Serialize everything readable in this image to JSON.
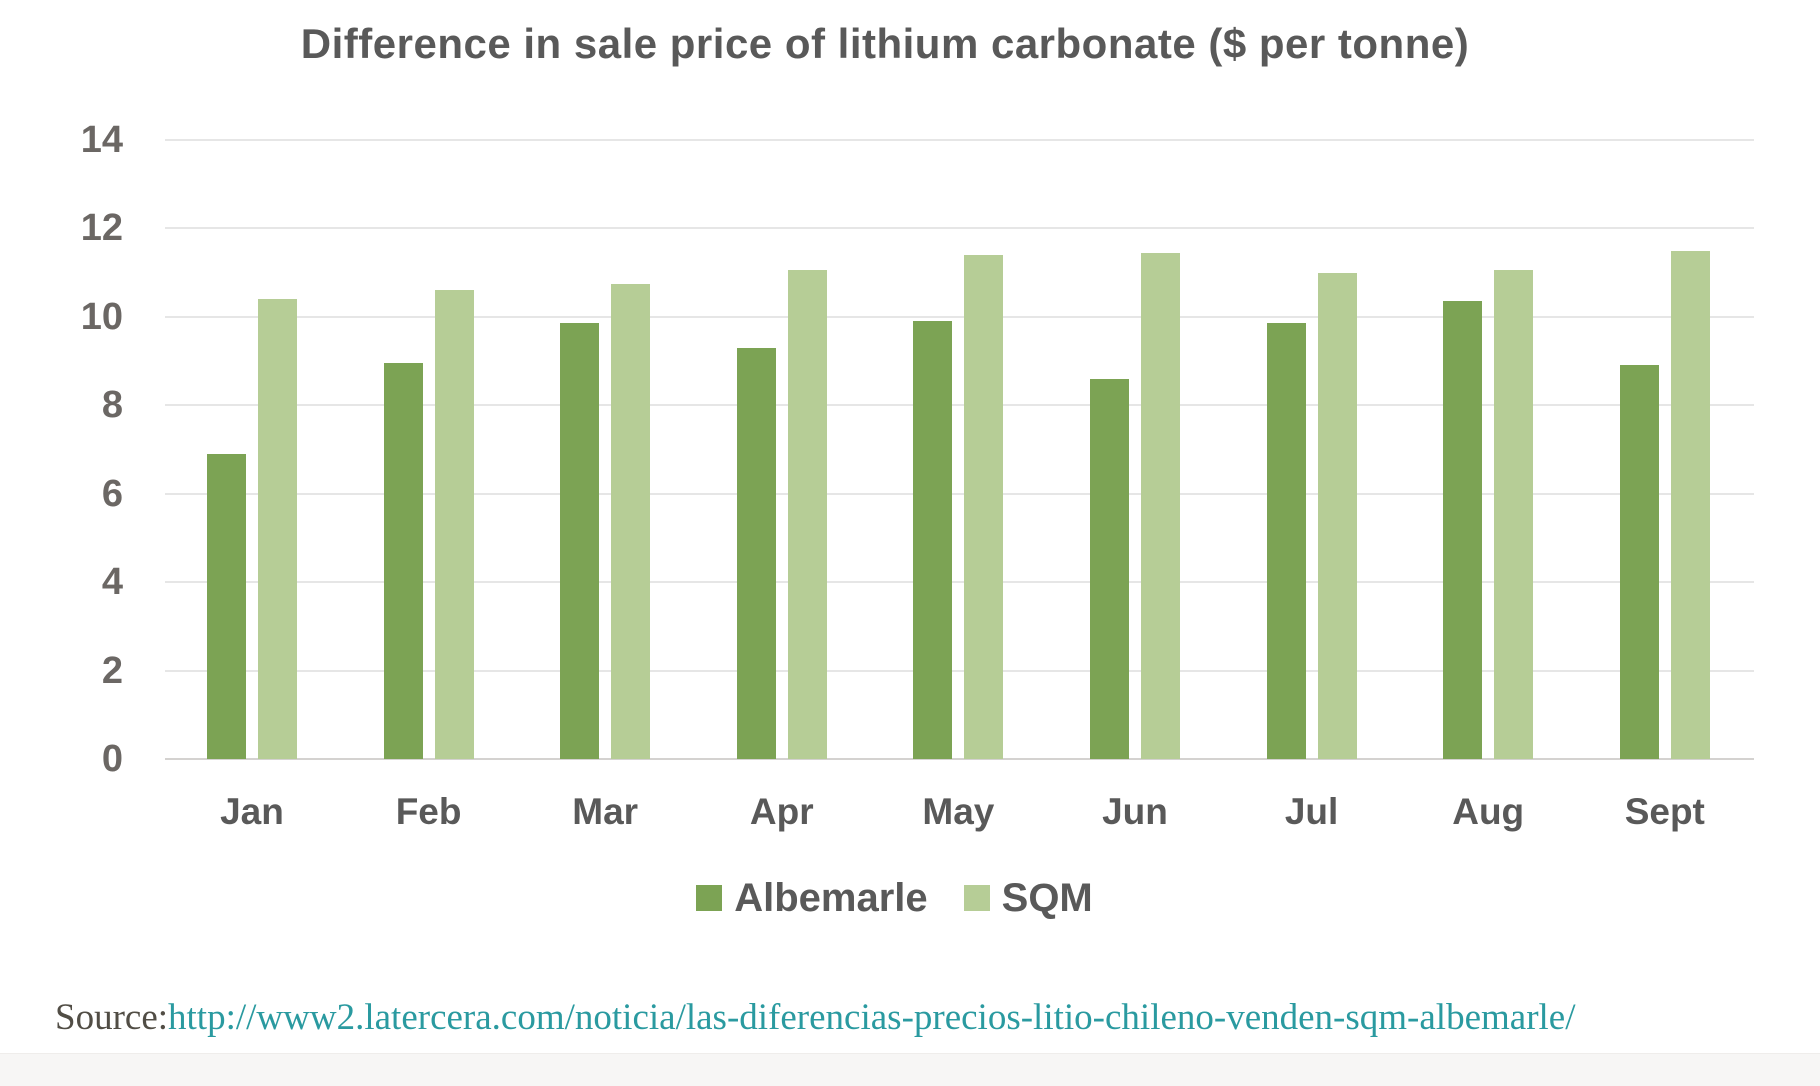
{
  "chart_data": {
    "type": "bar",
    "title": "Difference in sale price of lithium carbonate ($ per tonne)",
    "categories": [
      "Jan",
      "Feb",
      "Mar",
      "Apr",
      "May",
      "Jun",
      "Jul",
      "Aug",
      "Sept"
    ],
    "series": [
      {
        "name": "Albemarle",
        "color": "#7ca354",
        "values": [
          6.9,
          8.95,
          9.85,
          9.3,
          9.9,
          8.6,
          9.85,
          10.35,
          8.9
        ]
      },
      {
        "name": "SQM",
        "color": "#b6cd96",
        "values": [
          10.4,
          10.6,
          10.75,
          11.05,
          11.4,
          11.45,
          11.0,
          11.05,
          11.5
        ]
      }
    ],
    "xlabel": "",
    "ylabel": "",
    "ylim": [
      0,
      14
    ],
    "yticks": [
      0,
      2,
      4,
      6,
      8,
      10,
      12,
      14
    ],
    "grid": true,
    "legend_position": "bottom"
  },
  "source": {
    "label": "Source:",
    "url": "http://www2.latercera.com/noticia/las-diferencias-precios-litio-chileno-venden-sqm-albemarle/"
  }
}
